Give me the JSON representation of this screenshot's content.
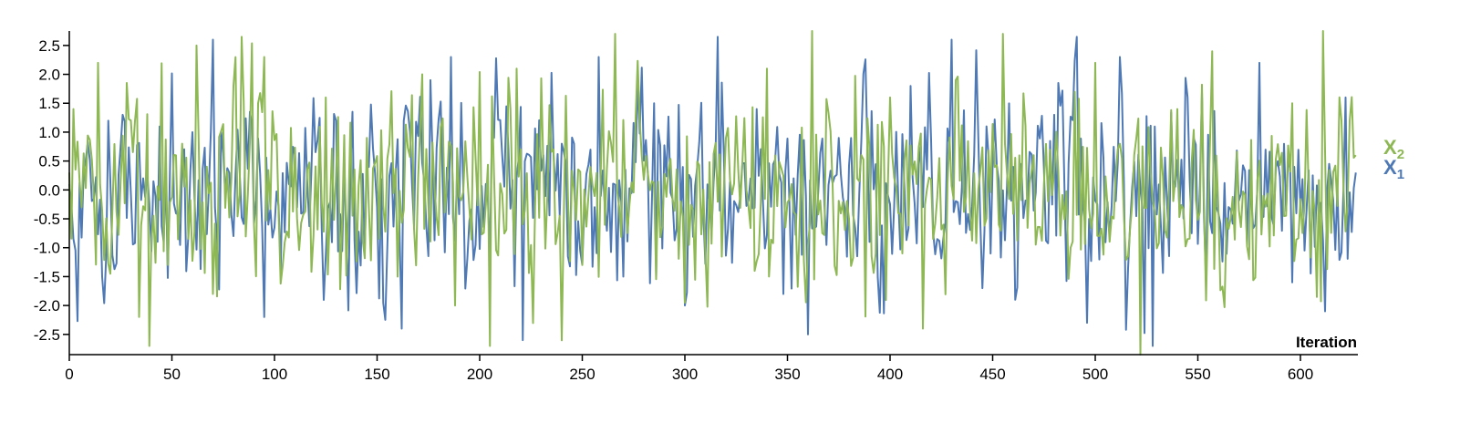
{
  "chart_data": {
    "type": "line",
    "xlabel": "Iteration",
    "xlim": [
      0,
      628
    ],
    "ylim": [
      -2.85,
      2.75
    ],
    "x_ticks": [
      "0",
      "50",
      "100",
      "150",
      "200",
      "250",
      "300",
      "350",
      "400",
      "450",
      "500",
      "550",
      "600"
    ],
    "y_ticks": [
      "2.5",
      "2.0",
      "1.5",
      "1.0",
      "0.5",
      "0.0",
      "-0.5",
      "-1.0",
      "-1.5",
      "-2.0",
      "-2.5"
    ],
    "grid": false,
    "legend_placement": "right",
    "n_points": 628,
    "series": [
      {
        "name": "X",
        "subscript": "1",
        "color": "#4e79b5",
        "anchors_x": [
          0,
          4,
          8,
          16,
          26,
          36,
          46,
          60,
          70,
          80,
          95,
          110,
          130,
          150,
          162,
          176,
          186,
          205,
          221,
          240,
          258,
          270,
          285,
          300,
          315,
          335,
          348,
          360,
          375,
          390,
          410,
          430,
          445,
          460,
          480,
          496,
          512,
          528,
          545,
          560,
          580,
          596,
          612,
          622,
          627
        ],
        "anchors_y": [
          0.1,
          -2.27,
          0.5,
          -1.5,
          1.3,
          0.2,
          -0.9,
          1.0,
          2.6,
          -0.8,
          -2.2,
          0.6,
          1.2,
          -0.3,
          -2.4,
          1.9,
          2.3,
          -1.2,
          -2.6,
          0.8,
          2.3,
          -1.5,
          1.5,
          -2.0,
          0.7,
          1.4,
          -1.8,
          -2.5,
          0.9,
          -0.9,
          1.8,
          2.6,
          -1.7,
          0.4,
          1.3,
          -2.3,
          2.3,
          -2.7,
          1.6,
          -0.4,
          2.2,
          -1.6,
          -2.1,
          1.6,
          0.3
        ]
      },
      {
        "name": "X",
        "subscript": "2",
        "color": "#8db854",
        "anchors_x": [
          0,
          2,
          6,
          14,
          20,
          28,
          34,
          39,
          55,
          62,
          70,
          80,
          95,
          105,
          125,
          145,
          160,
          172,
          188,
          205,
          218,
          236,
          250,
          266,
          278,
          300,
          320,
          340,
          362,
          380,
          400,
          416,
          432,
          455,
          470,
          488,
          500,
          512,
          522,
          540,
          557,
          575,
          596,
          611,
          620,
          627
        ],
        "anchors_y": [
          0.3,
          1.4,
          -0.3,
          2.2,
          -1.45,
          1.85,
          -2.2,
          -2.7,
          0.8,
          2.5,
          -1.8,
          1.8,
          2.3,
          -0.9,
          1.6,
          0.9,
          -1.5,
          2.0,
          -2.0,
          -2.7,
          2.1,
          0.7,
          -1.3,
          2.7,
          1.2,
          -1.95,
          0.9,
          2.1,
          2.75,
          -0.5,
          1.6,
          -2.4,
          1.9,
          2.7,
          0.6,
          -1.0,
          2.2,
          0.8,
          -2.85,
          1.4,
          2.4,
          -1.2,
          1.5,
          2.75,
          1.2,
          0.6
        ]
      }
    ]
  }
}
